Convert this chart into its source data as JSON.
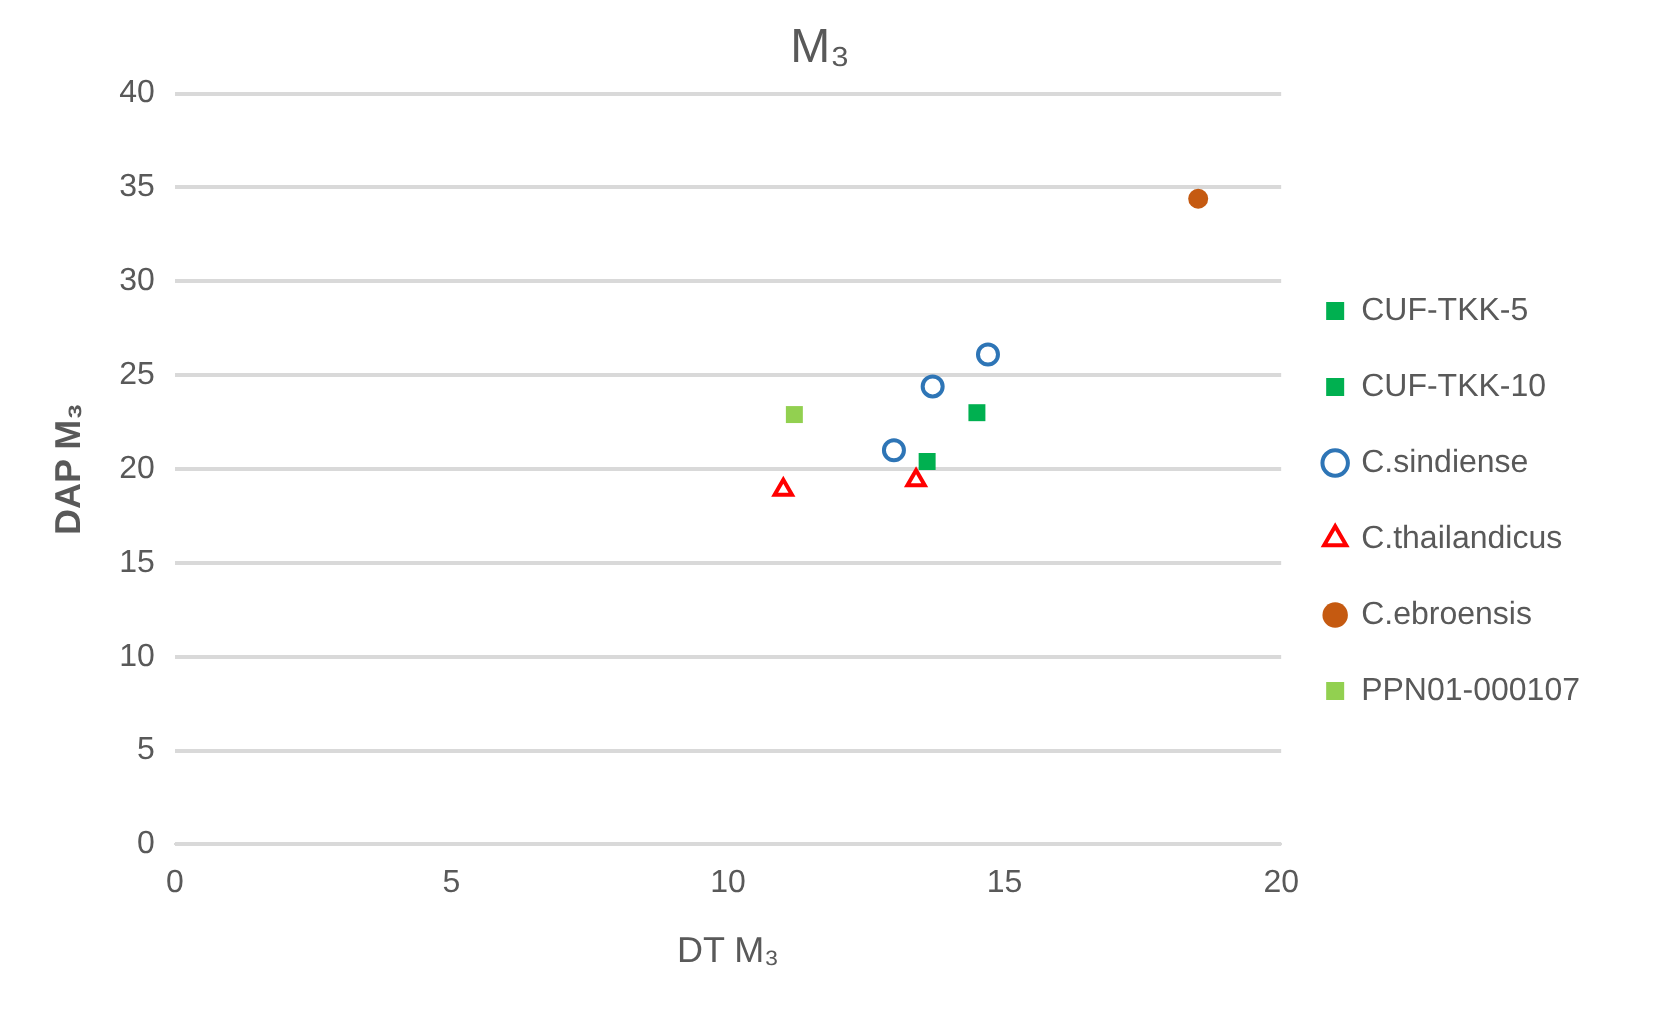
{
  "chart_data": {
    "type": "scatter",
    "title": "M₃",
    "xlabel": "DT M₃",
    "ylabel": "DAP M₃",
    "xlim": [
      0,
      20
    ],
    "xticks": [
      0,
      5,
      10,
      15,
      20
    ],
    "ylim": [
      0,
      40
    ],
    "yticks": [
      0,
      5,
      10,
      15,
      20,
      25,
      30,
      35,
      40
    ],
    "grid": "y",
    "legend": "right",
    "series": [
      {
        "name": "CUF-TKK-5",
        "color": "#00b050",
        "marker": "square",
        "x": [
          14.5
        ],
        "values": [
          23
        ]
      },
      {
        "name": "CUF-TKK-10",
        "color": "#00b050",
        "marker": "square",
        "x": [
          13.6
        ],
        "values": [
          20.4
        ]
      },
      {
        "name": "C.sindiense",
        "color": "#2e75b6",
        "marker": "circle",
        "x": [
          13,
          13.7,
          14.7
        ],
        "values": [
          21,
          24.4,
          26.1
        ]
      },
      {
        "name": "C.thailandicus",
        "color": "#ff0000",
        "marker": "triangle",
        "x": [
          11,
          13.4
        ],
        "values": [
          18.9,
          19.4
        ]
      },
      {
        "name": "C.ebroensis",
        "color": "#c55a11",
        "marker": "circle",
        "x": [
          18.5
        ],
        "values": [
          34.4
        ]
      },
      {
        "name": "PPN01-000107",
        "color": "#92d050",
        "marker": "square",
        "x": [
          11.2
        ],
        "values": [
          22.9
        ]
      }
    ]
  }
}
